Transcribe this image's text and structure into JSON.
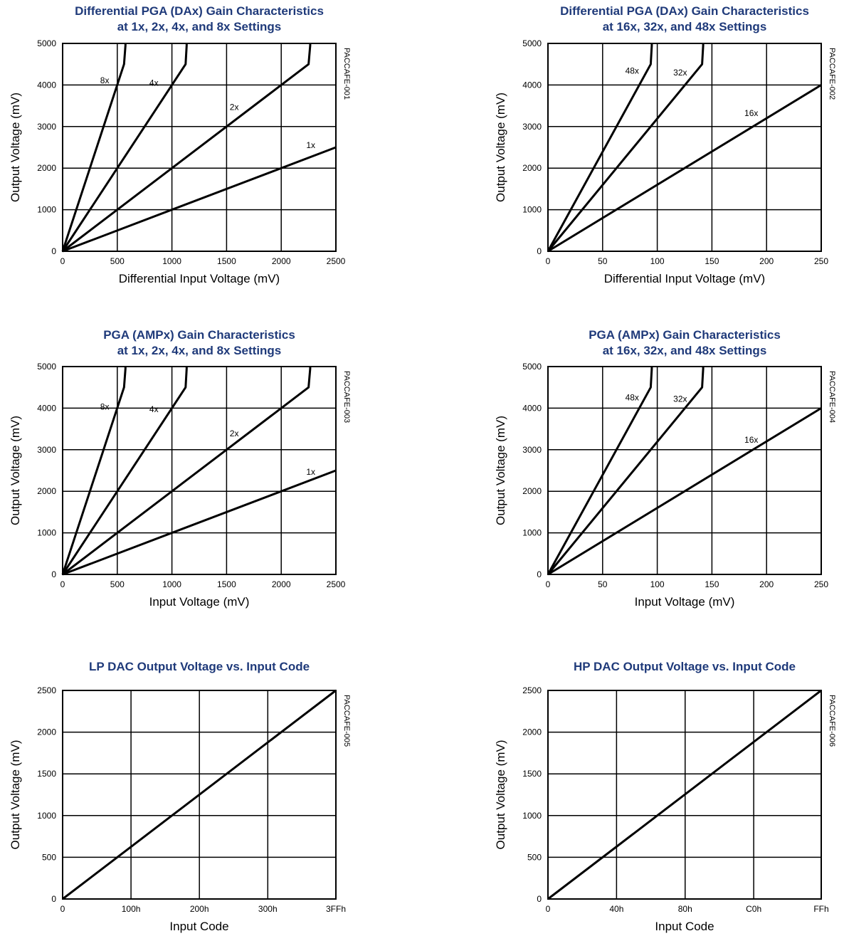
{
  "chart_data": [
    {
      "type": "line",
      "title_lines": [
        "Differential PGA (DAx) Gain Characteristics",
        "at 1x, 2x, 4x, and 8x Settings"
      ],
      "xlabel": "Differential Input Voltage (mV)",
      "ylabel": "Output Voltage (mV)",
      "figure_id": "PACCAFE-001",
      "xlim": [
        0,
        2500
      ],
      "ylim": [
        0,
        5000
      ],
      "xticks": [
        0,
        500,
        1000,
        1500,
        2000,
        2500
      ],
      "xtick_labels": [
        "0",
        "500",
        "1000",
        "1500",
        "2000",
        "2500"
      ],
      "yticks": [
        0,
        1000,
        2000,
        3000,
        4000,
        5000
      ],
      "ytick_labels": [
        "0",
        "1000",
        "2000",
        "3000",
        "4000",
        "5000"
      ],
      "grid": true,
      "series": [
        {
          "name": "8x",
          "x": [
            0,
            562,
            575,
            575
          ],
          "y": [
            0,
            4500,
            4950,
            5000
          ],
          "label_at": [
            385,
            4040
          ]
        },
        {
          "name": "4x",
          "x": [
            0,
            1125,
            1135,
            1135
          ],
          "y": [
            0,
            4500,
            4950,
            5000
          ],
          "label_at": [
            835,
            3980
          ]
        },
        {
          "name": "2x",
          "x": [
            0,
            2250,
            2265,
            2265
          ],
          "y": [
            0,
            4500,
            4950,
            5000
          ],
          "label_at": [
            1570,
            3400
          ]
        },
        {
          "name": "1x",
          "x": [
            0,
            2500
          ],
          "y": [
            0,
            2500
          ],
          "label_at": [
            2270,
            2480
          ]
        }
      ]
    },
    {
      "type": "line",
      "title_lines": [
        "Differential PGA (DAx) Gain Characteristics",
        "at 16x, 32x, and 48x Settings"
      ],
      "xlabel": "Differential Input Voltage (mV)",
      "ylabel": "Output Voltage (mV)",
      "figure_id": "PACCAFE-002",
      "xlim": [
        0,
        250
      ],
      "ylim": [
        0,
        5000
      ],
      "xticks": [
        0,
        50,
        100,
        150,
        200,
        250
      ],
      "xtick_labels": [
        "0",
        "50",
        "100",
        "150",
        "200",
        "250"
      ],
      "yticks": [
        0,
        1000,
        2000,
        3000,
        4000,
        5000
      ],
      "ytick_labels": [
        "0",
        "1000",
        "2000",
        "3000",
        "4000",
        "5000"
      ],
      "grid": true,
      "series": [
        {
          "name": "48x",
          "x": [
            0,
            94,
            95,
            95
          ],
          "y": [
            0,
            4500,
            4950,
            5000
          ],
          "label_at": [
            77,
            4270
          ]
        },
        {
          "name": "32x",
          "x": [
            0,
            141,
            142,
            142
          ],
          "y": [
            0,
            4500,
            4950,
            5000
          ],
          "label_at": [
            121,
            4230
          ]
        },
        {
          "name": "16x",
          "x": [
            0,
            250
          ],
          "y": [
            0,
            4000
          ],
          "label_at": [
            186,
            3250
          ]
        }
      ]
    },
    {
      "type": "line",
      "title_lines": [
        "PGA (AMPx) Gain Characteristics",
        "at 1x, 2x, 4x, and 8x Settings"
      ],
      "xlabel": "Input Voltage (mV)",
      "ylabel": "Output Voltage (mV)",
      "figure_id": "PACCAFE-003",
      "xlim": [
        0,
        2500
      ],
      "ylim": [
        0,
        5000
      ],
      "xticks": [
        0,
        500,
        1000,
        1500,
        2000,
        2500
      ],
      "xtick_labels": [
        "0",
        "500",
        "1000",
        "1500",
        "2000",
        "2500"
      ],
      "yticks": [
        0,
        1000,
        2000,
        3000,
        4000,
        5000
      ],
      "ytick_labels": [
        "0",
        "1000",
        "2000",
        "3000",
        "4000",
        "5000"
      ],
      "grid": true,
      "series": [
        {
          "name": "8x",
          "x": [
            0,
            562,
            575,
            575
          ],
          "y": [
            0,
            4500,
            4950,
            5000
          ],
          "label_at": [
            385,
            3960
          ]
        },
        {
          "name": "4x",
          "x": [
            0,
            1125,
            1135,
            1135
          ],
          "y": [
            0,
            4500,
            4950,
            5000
          ],
          "label_at": [
            835,
            3900
          ]
        },
        {
          "name": "2x",
          "x": [
            0,
            2250,
            2265,
            2265
          ],
          "y": [
            0,
            4500,
            4950,
            5000
          ],
          "label_at": [
            1570,
            3320
          ]
        },
        {
          "name": "1x",
          "x": [
            0,
            2500
          ],
          "y": [
            0,
            2500
          ],
          "label_at": [
            2270,
            2400
          ]
        }
      ]
    },
    {
      "type": "line",
      "title_lines": [
        "PGA (AMPx) Gain Characteristics",
        "at 16x, 32x, and 48x Settings"
      ],
      "xlabel": "Input Voltage (mV)",
      "ylabel": "Output Voltage (mV)",
      "figure_id": "PACCAFE-004",
      "xlim": [
        0,
        250
      ],
      "ylim": [
        0,
        5000
      ],
      "xticks": [
        0,
        50,
        100,
        150,
        200,
        250
      ],
      "xtick_labels": [
        "0",
        "50",
        "100",
        "150",
        "200",
        "250"
      ],
      "yticks": [
        0,
        1000,
        2000,
        3000,
        4000,
        5000
      ],
      "ytick_labels": [
        "0",
        "1000",
        "2000",
        "3000",
        "4000",
        "5000"
      ],
      "grid": true,
      "series": [
        {
          "name": "48x",
          "x": [
            0,
            94,
            95,
            95
          ],
          "y": [
            0,
            4500,
            4950,
            5000
          ],
          "label_at": [
            77,
            4190
          ]
        },
        {
          "name": "32x",
          "x": [
            0,
            141,
            142,
            142
          ],
          "y": [
            0,
            4500,
            4950,
            5000
          ],
          "label_at": [
            121,
            4150
          ]
        },
        {
          "name": "16x",
          "x": [
            0,
            250
          ],
          "y": [
            0,
            4000
          ],
          "label_at": [
            186,
            3170
          ]
        }
      ]
    },
    {
      "type": "line",
      "title_lines": [
        "LP DAC Output Voltage vs. Input Code"
      ],
      "xlabel": "Input Code",
      "ylabel": "Output Voltage (mV)",
      "figure_id": "PACCAFE-005",
      "xlim": [
        0,
        1023
      ],
      "ylim": [
        0,
        2500
      ],
      "xticks": [
        0,
        256,
        512,
        768,
        1023
      ],
      "xtick_labels": [
        "0",
        "100h",
        "200h",
        "300h",
        "3FFh"
      ],
      "yticks": [
        0,
        500,
        1000,
        1500,
        2000,
        2500
      ],
      "ytick_labels": [
        "0",
        "500",
        "1000",
        "1500",
        "2000",
        "2500"
      ],
      "grid": true,
      "series": [
        {
          "x": [
            0,
            1023
          ],
          "y": [
            0,
            2500
          ]
        }
      ]
    },
    {
      "type": "line",
      "title_lines": [
        "HP DAC Output Voltage vs. Input Code"
      ],
      "xlabel": "Input Code",
      "ylabel": "Output Voltage (mV)",
      "figure_id": "PACCAFE-006",
      "xlim": [
        0,
        255
      ],
      "ylim": [
        0,
        2500
      ],
      "xticks": [
        0,
        64,
        128,
        192,
        255
      ],
      "xtick_labels": [
        "0",
        "40h",
        "80h",
        "C0h",
        "FFh"
      ],
      "yticks": [
        0,
        500,
        1000,
        1500,
        2000,
        2500
      ],
      "ytick_labels": [
        "0",
        "500",
        "1000",
        "1500",
        "2000",
        "2500"
      ],
      "grid": true,
      "series": [
        {
          "x": [
            0,
            255
          ],
          "y": [
            0,
            2500
          ]
        }
      ]
    }
  ],
  "colors": {
    "title": "#1f3a7a",
    "line": "#000000",
    "grid": "#000000",
    "background": "#ffffff"
  }
}
